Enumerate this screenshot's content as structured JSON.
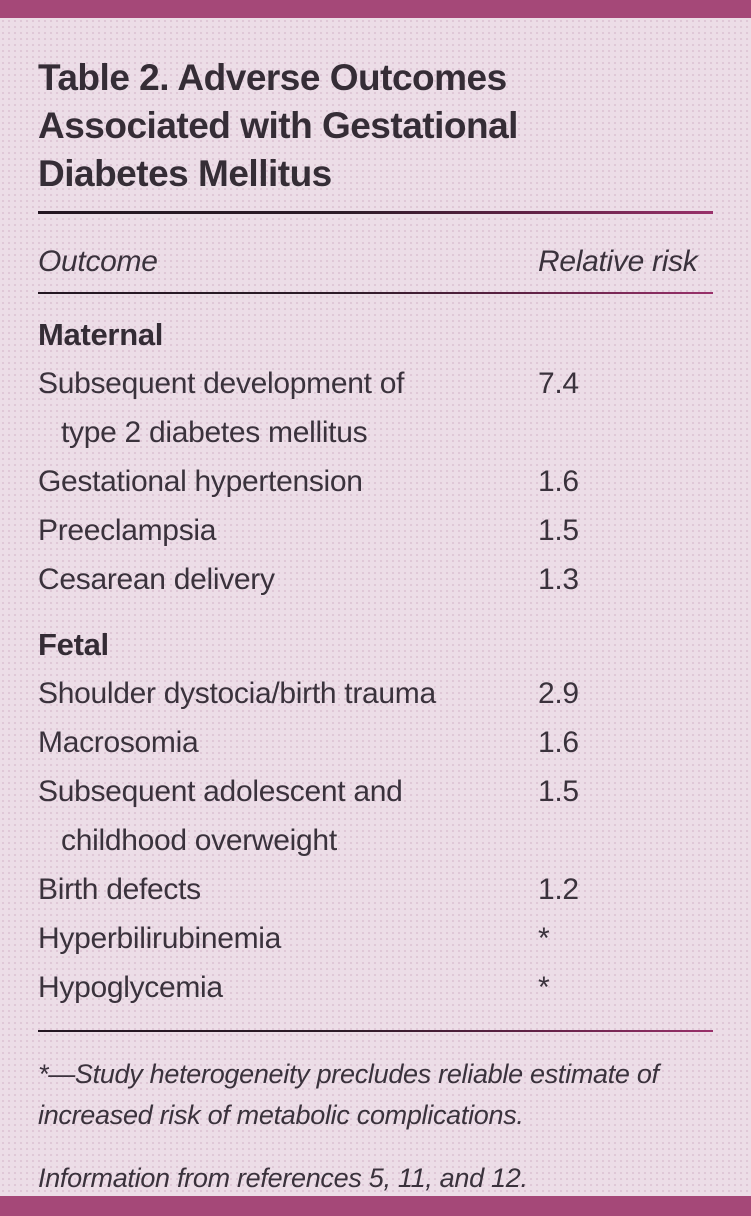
{
  "header": {
    "title": "Table 2. Adverse Outcomes\nAssociated with Gestational\nDiabetes Mellitus"
  },
  "table": {
    "columns": {
      "outcome": "Outcome",
      "relative_risk": "Relative risk"
    },
    "sections": [
      {
        "heading": "Maternal",
        "rows": [
          {
            "outcome": "Subsequent development of\ntype 2 diabetes mellitus",
            "relative_risk": "7.4"
          },
          {
            "outcome": "Gestational hypertension",
            "relative_risk": "1.6"
          },
          {
            "outcome": "Preeclampsia",
            "relative_risk": "1.5"
          },
          {
            "outcome": "Cesarean delivery",
            "relative_risk": "1.3"
          }
        ]
      },
      {
        "heading": "Fetal",
        "rows": [
          {
            "outcome": "Shoulder dystocia/birth trauma",
            "relative_risk": "2.9"
          },
          {
            "outcome": "Macrosomia",
            "relative_risk": "1.6"
          },
          {
            "outcome": "Subsequent adolescent and\nchildhood overweight",
            "relative_risk": "1.5"
          },
          {
            "outcome": "Birth defects",
            "relative_risk": "1.2"
          },
          {
            "outcome": "Hyperbilirubinemia",
            "relative_risk": "*"
          },
          {
            "outcome": "Hypoglycemia",
            "relative_risk": "*"
          }
        ]
      }
    ]
  },
  "footnotes": {
    "asterisk_note": "*—Study heterogeneity precludes reliable estimate of\nincreased risk of metabolic complications.",
    "source_note": "Information from references 5, 11, and 12."
  },
  "colors": {
    "accent_bar": "#a54878",
    "background": "#ecdde7",
    "text": "#3a323c",
    "divider_dark": "#231621",
    "divider_magenta": "#99306a"
  }
}
